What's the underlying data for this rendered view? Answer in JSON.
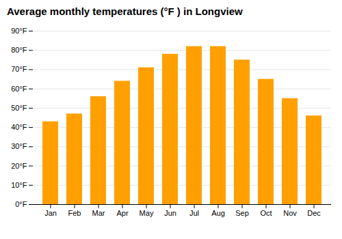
{
  "chart_data": {
    "type": "bar",
    "title": "Average monthly temperatures (°F ) in Longview",
    "categories": [
      "Jan",
      "Feb",
      "Mar",
      "Apr",
      "May",
      "Jun",
      "Jul",
      "Aug",
      "Sep",
      "Oct",
      "Nov",
      "Dec"
    ],
    "values": [
      43,
      47,
      56,
      64,
      71,
      78,
      82,
      82,
      75,
      65,
      55,
      46
    ],
    "color": "#FFA000",
    "ylim": [
      0,
      90
    ],
    "yticks": [
      {
        "value": 0,
        "label": "0°F"
      },
      {
        "value": 10,
        "label": "10°F"
      },
      {
        "value": 20,
        "label": "20°F"
      },
      {
        "value": 30,
        "label": "30°F"
      },
      {
        "value": 40,
        "label": "40°F"
      },
      {
        "value": 50,
        "label": "50°F"
      },
      {
        "value": 60,
        "label": "60°F"
      },
      {
        "value": 70,
        "label": "70°F"
      },
      {
        "value": 80,
        "label": "80°F"
      },
      {
        "value": 90,
        "label": "90°F"
      }
    ],
    "grid": true
  }
}
